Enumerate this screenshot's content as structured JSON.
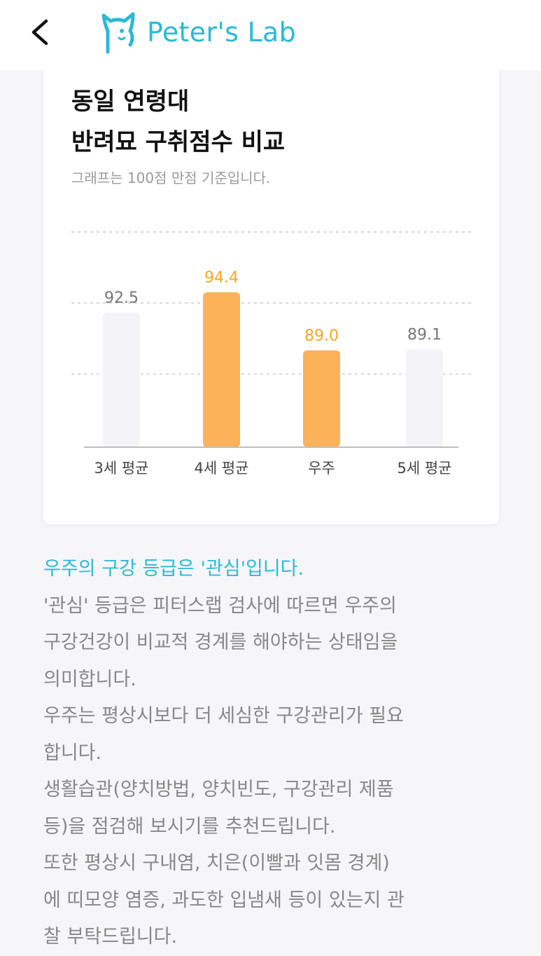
{
  "header": {
    "brand": "Peter's Lab",
    "back_icon": "chevron-left-icon",
    "logo_icon": "cat-logo-icon",
    "brand_color": "#2bb9d6"
  },
  "card": {
    "title_line1": "동일 연령대",
    "title_line2": "반려묘 구취점수 비교",
    "subtitle": "그래프는 100점 만점 기준입니다."
  },
  "chart_data": {
    "type": "bar",
    "categories": [
      "3세 평균",
      "4세 평균",
      "우주",
      "5세 평균"
    ],
    "values": [
      92.5,
      94.4,
      89.0,
      89.1
    ],
    "labels": [
      "92.5",
      "94.4",
      "89.0",
      "89.1"
    ],
    "highlighted": [
      false,
      true,
      true,
      false
    ],
    "ylim": [
      0,
      100
    ],
    "grid": true,
    "colors": {
      "highlight_bar": "#fbb259",
      "highlight_label": "#f5a623",
      "normal_bar": "#f3f3f8",
      "normal_label": "#777777"
    }
  },
  "description": {
    "headline": "우주의 구강 등급은 '관심'입니다.",
    "lines": [
      "'관심' 등급은 피터스랩 검사에 따르면 우주의",
      "구강건강이 비교적 경계를 해야하는 상태임을",
      "의미합니다.",
      "우주는 평상시보다 더 세심한 구강관리가 필요",
      "합니다.",
      "생활습관(양치방법, 양치빈도, 구강관리 제품",
      "등)을 점검해 보시기를 추천드립니다.",
      "또한 평상시 구내염, 치은(이빨과 잇몸 경계)",
      "에 띠모양 염증, 과도한 입냄새 등이 있는지 관",
      "찰 부탁드립니다."
    ]
  }
}
